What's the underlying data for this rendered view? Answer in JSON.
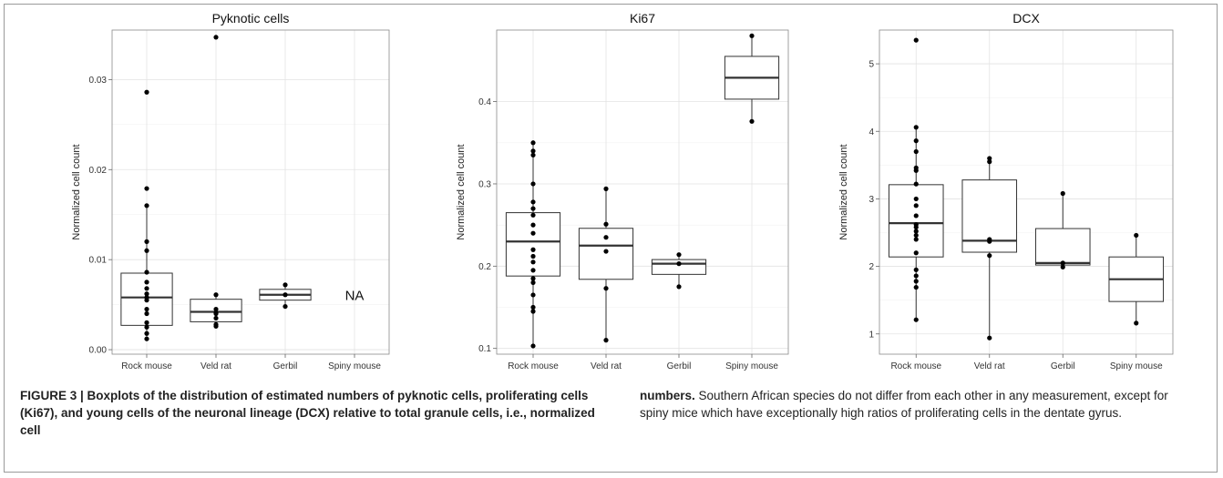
{
  "figure": {
    "caption_label": "FIGURE 3 |",
    "caption_left": " Boxplots of the distribution of estimated numbers of pyknotic cells, proliferating cells (Ki67), and young cells of the neuronal lineage (DCX) relative to total granule cells, i.e., normalized cell",
    "caption_right_bold": "numbers.",
    "caption_right": " Southern African species do not differ from each other in any measurement, except for spiny mice which have exceptionally high ratios of proliferating cells in the dentate gyrus."
  },
  "chart_data": [
    {
      "type": "box",
      "title": "Pyknotic cells",
      "xlabel": "",
      "ylabel": "Normalized cell count",
      "categories": [
        "Rock mouse",
        "Veld rat",
        "Gerbil",
        "Spiny mouse"
      ],
      "ylim": [
        -0.0005,
        0.0355
      ],
      "yticks": [
        0.0,
        0.01,
        0.02,
        0.03
      ],
      "ytick_labels": [
        "0.00",
        "0.01",
        "0.02",
        "0.03"
      ],
      "grid": true,
      "annotations": [
        {
          "category": "Spiny mouse",
          "y": 0.006,
          "text": "NA"
        }
      ],
      "boxes": [
        {
          "category": "Rock mouse",
          "q1": 0.0027,
          "median": 0.0058,
          "q3": 0.0085,
          "whisker_low": 0.0012,
          "whisker_high": 0.016
        },
        {
          "category": "Veld rat",
          "q1": 0.0031,
          "median": 0.0042,
          "q3": 0.0056,
          "whisker_low": 0.0026,
          "whisker_high": 0.0061
        },
        {
          "category": "Gerbil",
          "q1": 0.0055,
          "median": 0.0061,
          "q3": 0.0067,
          "whisker_low": 0.0048,
          "whisker_high": 0.0072
        },
        null
      ],
      "points": [
        {
          "category": "Rock mouse",
          "values": [
            0.0286,
            0.0179,
            0.016,
            0.012,
            0.011,
            0.0086,
            0.0075,
            0.0068,
            0.0062,
            0.0058,
            0.0055,
            0.0045,
            0.004,
            0.003,
            0.0025,
            0.0018,
            0.0012
          ]
        },
        {
          "category": "Veld rat",
          "values": [
            0.0347,
            0.0061,
            0.0045,
            0.0041,
            0.004,
            0.0035,
            0.0028,
            0.0026
          ]
        },
        {
          "category": "Gerbil",
          "values": [
            0.0072,
            0.0061,
            0.0048
          ]
        },
        {
          "category": "Spiny mouse",
          "values": []
        }
      ]
    },
    {
      "type": "box",
      "title": "Ki67",
      "xlabel": "",
      "ylabel": "Normalized cell count",
      "categories": [
        "Rock mouse",
        "Veld rat",
        "Gerbil",
        "Spiny mouse"
      ],
      "ylim": [
        0.093,
        0.487
      ],
      "yticks": [
        0.1,
        0.2,
        0.3,
        0.4
      ],
      "ytick_labels": [
        "0.1",
        "0.2",
        "0.3",
        "0.4"
      ],
      "grid": true,
      "boxes": [
        {
          "category": "Rock mouse",
          "q1": 0.188,
          "median": 0.23,
          "q3": 0.265,
          "whisker_low": 0.103,
          "whisker_high": 0.35
        },
        {
          "category": "Veld rat",
          "q1": 0.184,
          "median": 0.225,
          "q3": 0.246,
          "whisker_low": 0.11,
          "whisker_high": 0.294
        },
        {
          "category": "Gerbil",
          "q1": 0.19,
          "median": 0.203,
          "q3": 0.208,
          "whisker_low": 0.175,
          "whisker_high": 0.214
        },
        {
          "category": "Spiny mouse",
          "q1": 0.403,
          "median": 0.429,
          "q3": 0.455,
          "whisker_low": 0.376,
          "whisker_high": 0.48
        }
      ],
      "points": [
        {
          "category": "Rock mouse",
          "values": [
            0.35,
            0.34,
            0.335,
            0.3,
            0.278,
            0.27,
            0.262,
            0.25,
            0.24,
            0.22,
            0.212,
            0.205,
            0.195,
            0.185,
            0.18,
            0.165,
            0.15,
            0.145,
            0.103
          ]
        },
        {
          "category": "Veld rat",
          "values": [
            0.294,
            0.251,
            0.235,
            0.218,
            0.173,
            0.11
          ]
        },
        {
          "category": "Gerbil",
          "values": [
            0.214,
            0.203,
            0.175
          ]
        },
        {
          "category": "Spiny mouse",
          "values": [
            0.48,
            0.376
          ]
        }
      ]
    },
    {
      "type": "box",
      "title": "DCX",
      "xlabel": "",
      "ylabel": "Normalized cell count",
      "categories": [
        "Rock mouse",
        "Veld rat",
        "Gerbil",
        "Spiny mouse"
      ],
      "ylim": [
        0.7,
        5.5
      ],
      "yticks": [
        1,
        2,
        3,
        4,
        5
      ],
      "ytick_labels": [
        "1",
        "2",
        "3",
        "4",
        "5"
      ],
      "grid": true,
      "boxes": [
        {
          "category": "Rock mouse",
          "q1": 2.14,
          "median": 2.64,
          "q3": 3.21,
          "whisker_low": 1.21,
          "whisker_high": 4.06
        },
        {
          "category": "Veld rat",
          "q1": 2.21,
          "median": 2.38,
          "q3": 3.28,
          "whisker_low": 0.94,
          "whisker_high": 3.6
        },
        {
          "category": "Gerbil",
          "q1": 2.02,
          "median": 2.05,
          "q3": 2.56,
          "whisker_low": 1.99,
          "whisker_high": 3.08
        },
        {
          "category": "Spiny mouse",
          "q1": 1.48,
          "median": 1.81,
          "q3": 2.14,
          "whisker_low": 1.16,
          "whisker_high": 2.46
        }
      ],
      "points": [
        {
          "category": "Rock mouse",
          "values": [
            5.35,
            4.06,
            3.86,
            3.7,
            3.46,
            3.42,
            3.22,
            3.0,
            2.9,
            2.75,
            2.62,
            2.58,
            2.52,
            2.46,
            2.4,
            2.2,
            1.95,
            1.86,
            1.78,
            1.69,
            1.21
          ]
        },
        {
          "category": "Veld rat",
          "values": [
            3.6,
            3.55,
            2.4,
            2.37,
            2.16,
            0.94
          ]
        },
        {
          "category": "Gerbil",
          "values": [
            3.08,
            2.05,
            1.99
          ]
        },
        {
          "category": "Spiny mouse",
          "values": [
            2.46,
            1.16
          ]
        }
      ]
    }
  ]
}
